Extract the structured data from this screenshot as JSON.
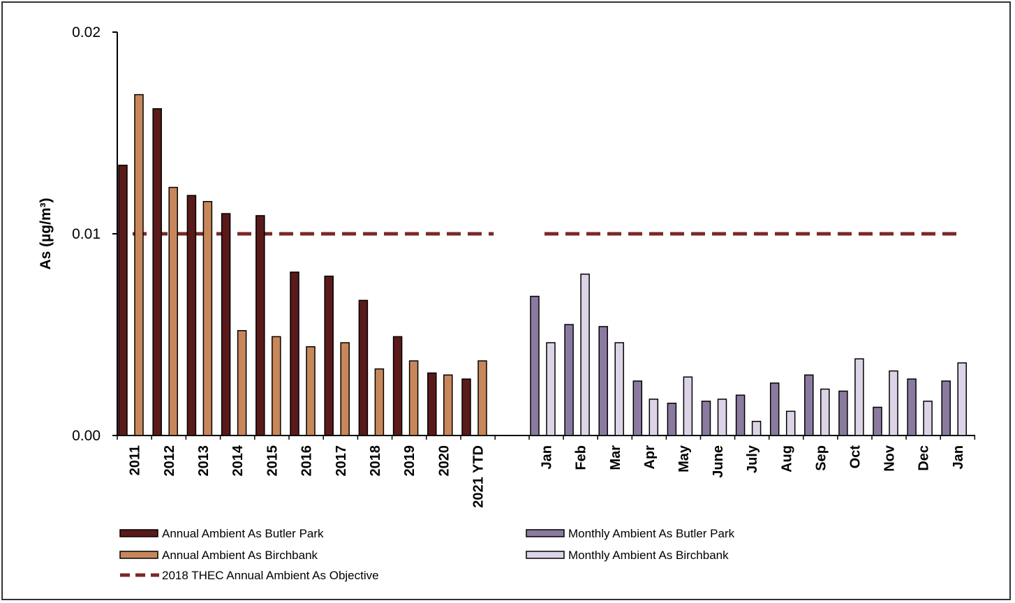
{
  "chart_data": {
    "type": "bar",
    "title": "",
    "xlabel": "",
    "ylabel": "As  (µg/m³)",
    "ylim": [
      0,
      0.02
    ],
    "yticks": [
      "0.00",
      "0.01",
      "0.02"
    ],
    "grid": false,
    "legend_position": "bottom",
    "annual": {
      "categories": [
        "2011",
        "2012",
        "2013",
        "2014",
        "2015",
        "2016",
        "2017",
        "2018",
        "2019",
        "2020",
        "2021 YTD"
      ],
      "series": [
        {
          "name": "Annual Ambient As Butler Park",
          "color": "#5a1a1a",
          "values": [
            0.0134,
            0.0162,
            0.0119,
            0.011,
            0.0109,
            0.0081,
            0.0079,
            0.0067,
            0.0049,
            0.0031,
            0.0028
          ]
        },
        {
          "name": "Annual Ambient As Birchbank",
          "color": "#c8875a",
          "values": [
            0.0169,
            0.0123,
            0.0116,
            0.0052,
            0.0049,
            0.0044,
            0.0046,
            0.0033,
            0.0037,
            0.003,
            0.0037
          ]
        }
      ]
    },
    "monthly": {
      "categories": [
        "Jan",
        "Feb",
        "Mar",
        "Apr",
        "May",
        "June",
        "July",
        "Aug",
        "Sep",
        "Oct",
        "Nov",
        "Dec",
        "Jan"
      ],
      "series": [
        {
          "name": "Monthly Ambient As Butler Park",
          "color": "#8a7aa0",
          "values": [
            0.0069,
            0.0055,
            0.0054,
            0.0027,
            0.0016,
            0.0017,
            0.002,
            0.0026,
            0.003,
            0.0022,
            0.0014,
            0.0028,
            0.0027
          ]
        },
        {
          "name": "Monthly Ambient As Birchbank",
          "color": "#dcd4e6",
          "values": [
            0.0046,
            0.008,
            0.0046,
            0.0018,
            0.0029,
            0.0018,
            0.0007,
            0.0012,
            0.0023,
            0.0038,
            0.0032,
            0.0017,
            0.0036
          ]
        }
      ]
    },
    "objective": {
      "name": "2018 THEC Annual Ambient As Objective",
      "value": 0.01,
      "color": "#7a2828"
    }
  }
}
